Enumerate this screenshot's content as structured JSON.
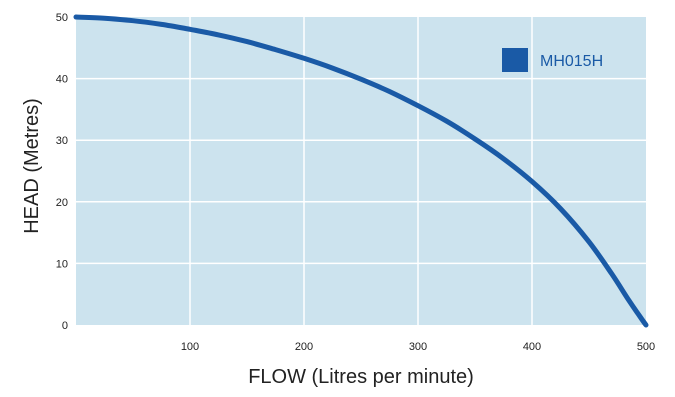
{
  "chart_data": {
    "type": "line",
    "title": "",
    "xlabel": "FLOW (Litres per minute)",
    "ylabel": "HEAD (Metres)",
    "xlim": [
      0,
      500
    ],
    "ylim": [
      0,
      50
    ],
    "x_ticks": [
      100,
      200,
      300,
      400,
      500
    ],
    "y_ticks": [
      0,
      10,
      20,
      30,
      40,
      50
    ],
    "grid": true,
    "legend_position": "top-right",
    "series": [
      {
        "name": "MH015H",
        "color": "#1a5aa6",
        "x": [
          0,
          25,
          50,
          75,
          100,
          125,
          150,
          175,
          200,
          225,
          250,
          275,
          300,
          325,
          350,
          375,
          400,
          425,
          450,
          470,
          485,
          495,
          500
        ],
        "y": [
          50,
          49.8,
          49.4,
          48.8,
          48.0,
          47.1,
          46.0,
          44.7,
          43.3,
          41.7,
          39.9,
          37.9,
          35.6,
          33.1,
          30.2,
          27.0,
          23.3,
          18.9,
          13.5,
          8.3,
          4.0,
          1.3,
          0
        ]
      }
    ]
  },
  "colors": {
    "plot_background": "#cce3ee",
    "grid": "#ffffff",
    "line": "#1a5aa6",
    "legend_text": "#1a5aa6"
  }
}
